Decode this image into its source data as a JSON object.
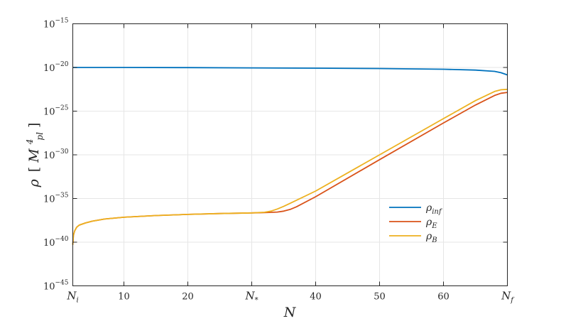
{
  "chart_data": {
    "type": "line",
    "xlabel": "N",
    "ylabel": "ρ [M_pl^4]",
    "ylabel_parts": {
      "rho": "ρ",
      "bracket_open": "[",
      "M": "M",
      "sub": "pl",
      "sup": "4",
      "bracket_close": "]"
    },
    "xlim": [
      2,
      70
    ],
    "ylim_log10": [
      -45,
      -15
    ],
    "yscale": "log",
    "grid": true,
    "legend_position": "lower-right",
    "x_ticks": [
      {
        "value": 2,
        "label": "N",
        "sub": "i"
      },
      {
        "value": 10,
        "label": "10"
      },
      {
        "value": 20,
        "label": "20"
      },
      {
        "value": 30,
        "label": "N",
        "sub": "*"
      },
      {
        "value": 40,
        "label": "40"
      },
      {
        "value": 50,
        "label": "50"
      },
      {
        "value": 60,
        "label": "60"
      },
      {
        "value": 70,
        "label": "N",
        "sub": "f"
      }
    ],
    "y_ticks": [
      {
        "exp": -45,
        "base": "10",
        "sup": "−45"
      },
      {
        "exp": -40,
        "base": "10",
        "sup": "−40"
      },
      {
        "exp": -35,
        "base": "10",
        "sup": "−35"
      },
      {
        "exp": -30,
        "base": "10",
        "sup": "−30"
      },
      {
        "exp": -25,
        "base": "10",
        "sup": "−25"
      },
      {
        "exp": -20,
        "base": "10",
        "sup": "−20"
      },
      {
        "exp": -15,
        "base": "10",
        "sup": "−15"
      }
    ],
    "series": [
      {
        "name": "ρ",
        "name_sub": "inf",
        "color": "#0072BD",
        "x": [
          2,
          10,
          20,
          30,
          40,
          50,
          60,
          65,
          68,
          69,
          70
        ],
        "log10_y": [
          -20.0,
          -20.0,
          -20.02,
          -20.05,
          -20.08,
          -20.12,
          -20.2,
          -20.3,
          -20.45,
          -20.6,
          -20.85
        ]
      },
      {
        "name": "ρ",
        "name_sub": "E",
        "color": "#D95319",
        "x": [
          2,
          2.1,
          2.3,
          2.6,
          3,
          4,
          5,
          7,
          10,
          15,
          20,
          25,
          30,
          32,
          34,
          35,
          36,
          37,
          40,
          50,
          60,
          65,
          68,
          69,
          70
        ],
        "log10_y": [
          -40.3,
          -39.2,
          -38.7,
          -38.3,
          -38.05,
          -37.8,
          -37.6,
          -37.35,
          -37.15,
          -36.95,
          -36.82,
          -36.72,
          -36.65,
          -36.62,
          -36.55,
          -36.45,
          -36.25,
          -35.95,
          -34.8,
          -30.55,
          -26.35,
          -24.3,
          -23.2,
          -22.95,
          -22.85
        ]
      },
      {
        "name": "ρ",
        "name_sub": "B",
        "color": "#EDB120",
        "x": [
          2,
          2.1,
          2.3,
          2.6,
          3,
          4,
          5,
          7,
          10,
          15,
          20,
          25,
          30,
          32,
          33,
          34,
          35,
          36,
          40,
          50,
          60,
          65,
          68,
          69,
          70
        ],
        "log10_y": [
          -40.3,
          -39.2,
          -38.7,
          -38.3,
          -38.05,
          -37.8,
          -37.6,
          -37.35,
          -37.15,
          -36.95,
          -36.82,
          -36.72,
          -36.65,
          -36.58,
          -36.45,
          -36.2,
          -35.9,
          -35.55,
          -34.15,
          -30.0,
          -25.85,
          -23.8,
          -22.75,
          -22.55,
          -22.5
        ]
      }
    ]
  }
}
